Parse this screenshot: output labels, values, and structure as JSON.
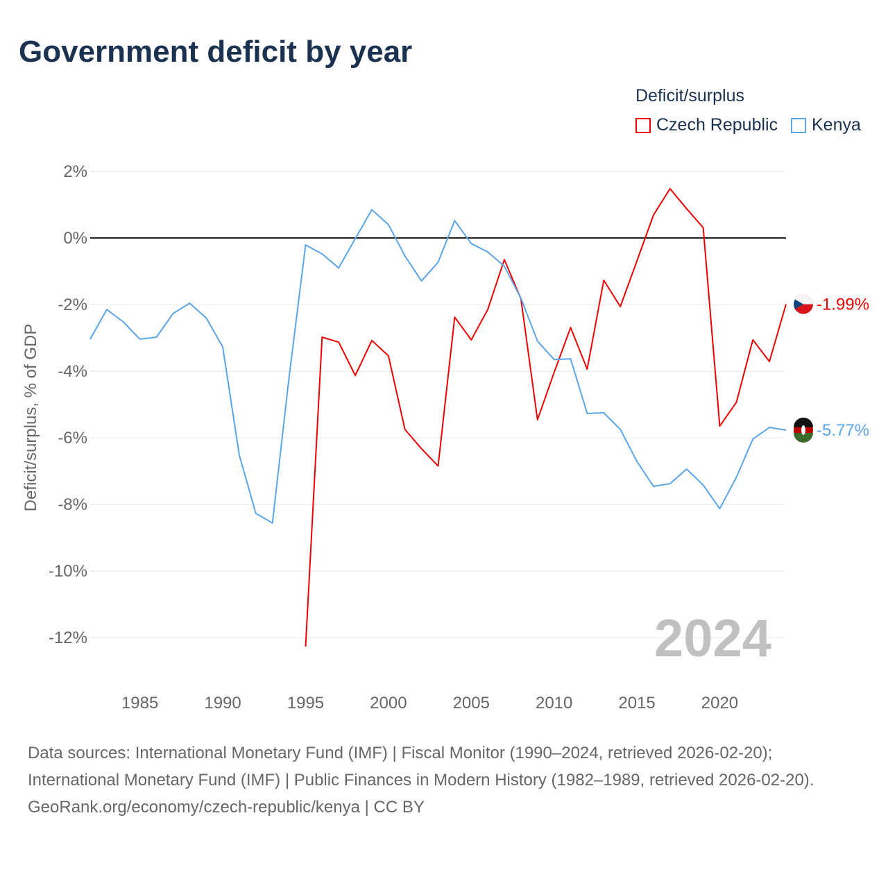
{
  "title": "Government deficit by year",
  "legend": {
    "title": "Deficit/surplus",
    "items": [
      {
        "label": "Czech Republic",
        "color": "#ee0000"
      },
      {
        "label": "Kenya",
        "color": "#5aa5e8"
      }
    ]
  },
  "footer": {
    "sources": "Data sources: International Monetary Fund (IMF) | Fiscal Monitor (1990–2024, retrieved 2026-02-20); International Monetary Fund (IMF) | Public Finances in Modern History (1982–1989, retrieved 2026-02-20).",
    "credit": "GeoRank.org/economy/czech-republic/kenya | CC BY"
  },
  "chart_data": {
    "type": "line",
    "title": "Government deficit by year",
    "ylabel": "Deficit/surplus, % of GDP",
    "xlabel": "",
    "year_watermark": "2024",
    "xlim": [
      1982,
      2024
    ],
    "ylim": [
      -13,
      2.5
    ],
    "xticks": [
      1985,
      1990,
      1995,
      2000,
      2005,
      2010,
      2015,
      2020
    ],
    "yticks": [
      2,
      0,
      -2,
      -4,
      -6,
      -8,
      -10,
      -12
    ],
    "ytick_labels": [
      "2%",
      "0%",
      "-2%",
      "-4%",
      "-6%",
      "-8%",
      "-10%",
      "-12%"
    ],
    "grid": true,
    "legend_position": "top-right",
    "series": [
      {
        "name": "Czech Republic",
        "color": "#ee0000",
        "end_label": "-1.99%",
        "x": [
          1995,
          1996,
          1997,
          1998,
          1999,
          2000,
          2001,
          2002,
          2003,
          2004,
          2005,
          2006,
          2007,
          2008,
          2009,
          2010,
          2011,
          2012,
          2013,
          2014,
          2015,
          2016,
          2017,
          2018,
          2019,
          2020,
          2021,
          2022,
          2023,
          2024
        ],
        "values": [
          -12.27,
          -2.98,
          -3.13,
          -4.13,
          -3.08,
          -3.54,
          -5.75,
          -6.33,
          -6.85,
          -2.38,
          -3.06,
          -2.15,
          -0.65,
          -1.83,
          -5.46,
          -4.04,
          -2.69,
          -3.94,
          -1.27,
          -2.06,
          -0.69,
          0.69,
          1.48,
          0.88,
          0.31,
          -5.65,
          -4.94,
          -3.06,
          -3.71,
          -1.99
        ]
      },
      {
        "name": "Kenya",
        "color": "#5aa5e8",
        "end_label": "-5.77%",
        "x": [
          1982,
          1983,
          1984,
          1985,
          1986,
          1987,
          1988,
          1989,
          1990,
          1991,
          1992,
          1993,
          1994,
          1995,
          1996,
          1997,
          1998,
          1999,
          2000,
          2001,
          2002,
          2003,
          2004,
          2005,
          2006,
          2007,
          2008,
          2009,
          2010,
          2011,
          2012,
          2013,
          2014,
          2015,
          2016,
          2017,
          2018,
          2019,
          2020,
          2021,
          2022,
          2023,
          2024
        ],
        "values": [
          -3.04,
          -2.15,
          -2.52,
          -3.04,
          -2.98,
          -2.27,
          -1.96,
          -2.4,
          -3.27,
          -6.52,
          -8.27,
          -8.56,
          -4.2,
          -0.21,
          -0.48,
          -0.9,
          -0.02,
          0.85,
          0.4,
          -0.54,
          -1.29,
          -0.73,
          0.52,
          -0.17,
          -0.42,
          -0.85,
          -1.81,
          -3.1,
          -3.65,
          -3.63,
          -5.27,
          -5.25,
          -5.75,
          -6.71,
          -7.46,
          -7.38,
          -6.94,
          -7.42,
          -8.13,
          -7.19,
          -6.04,
          -5.69,
          -5.77
        ]
      }
    ]
  }
}
